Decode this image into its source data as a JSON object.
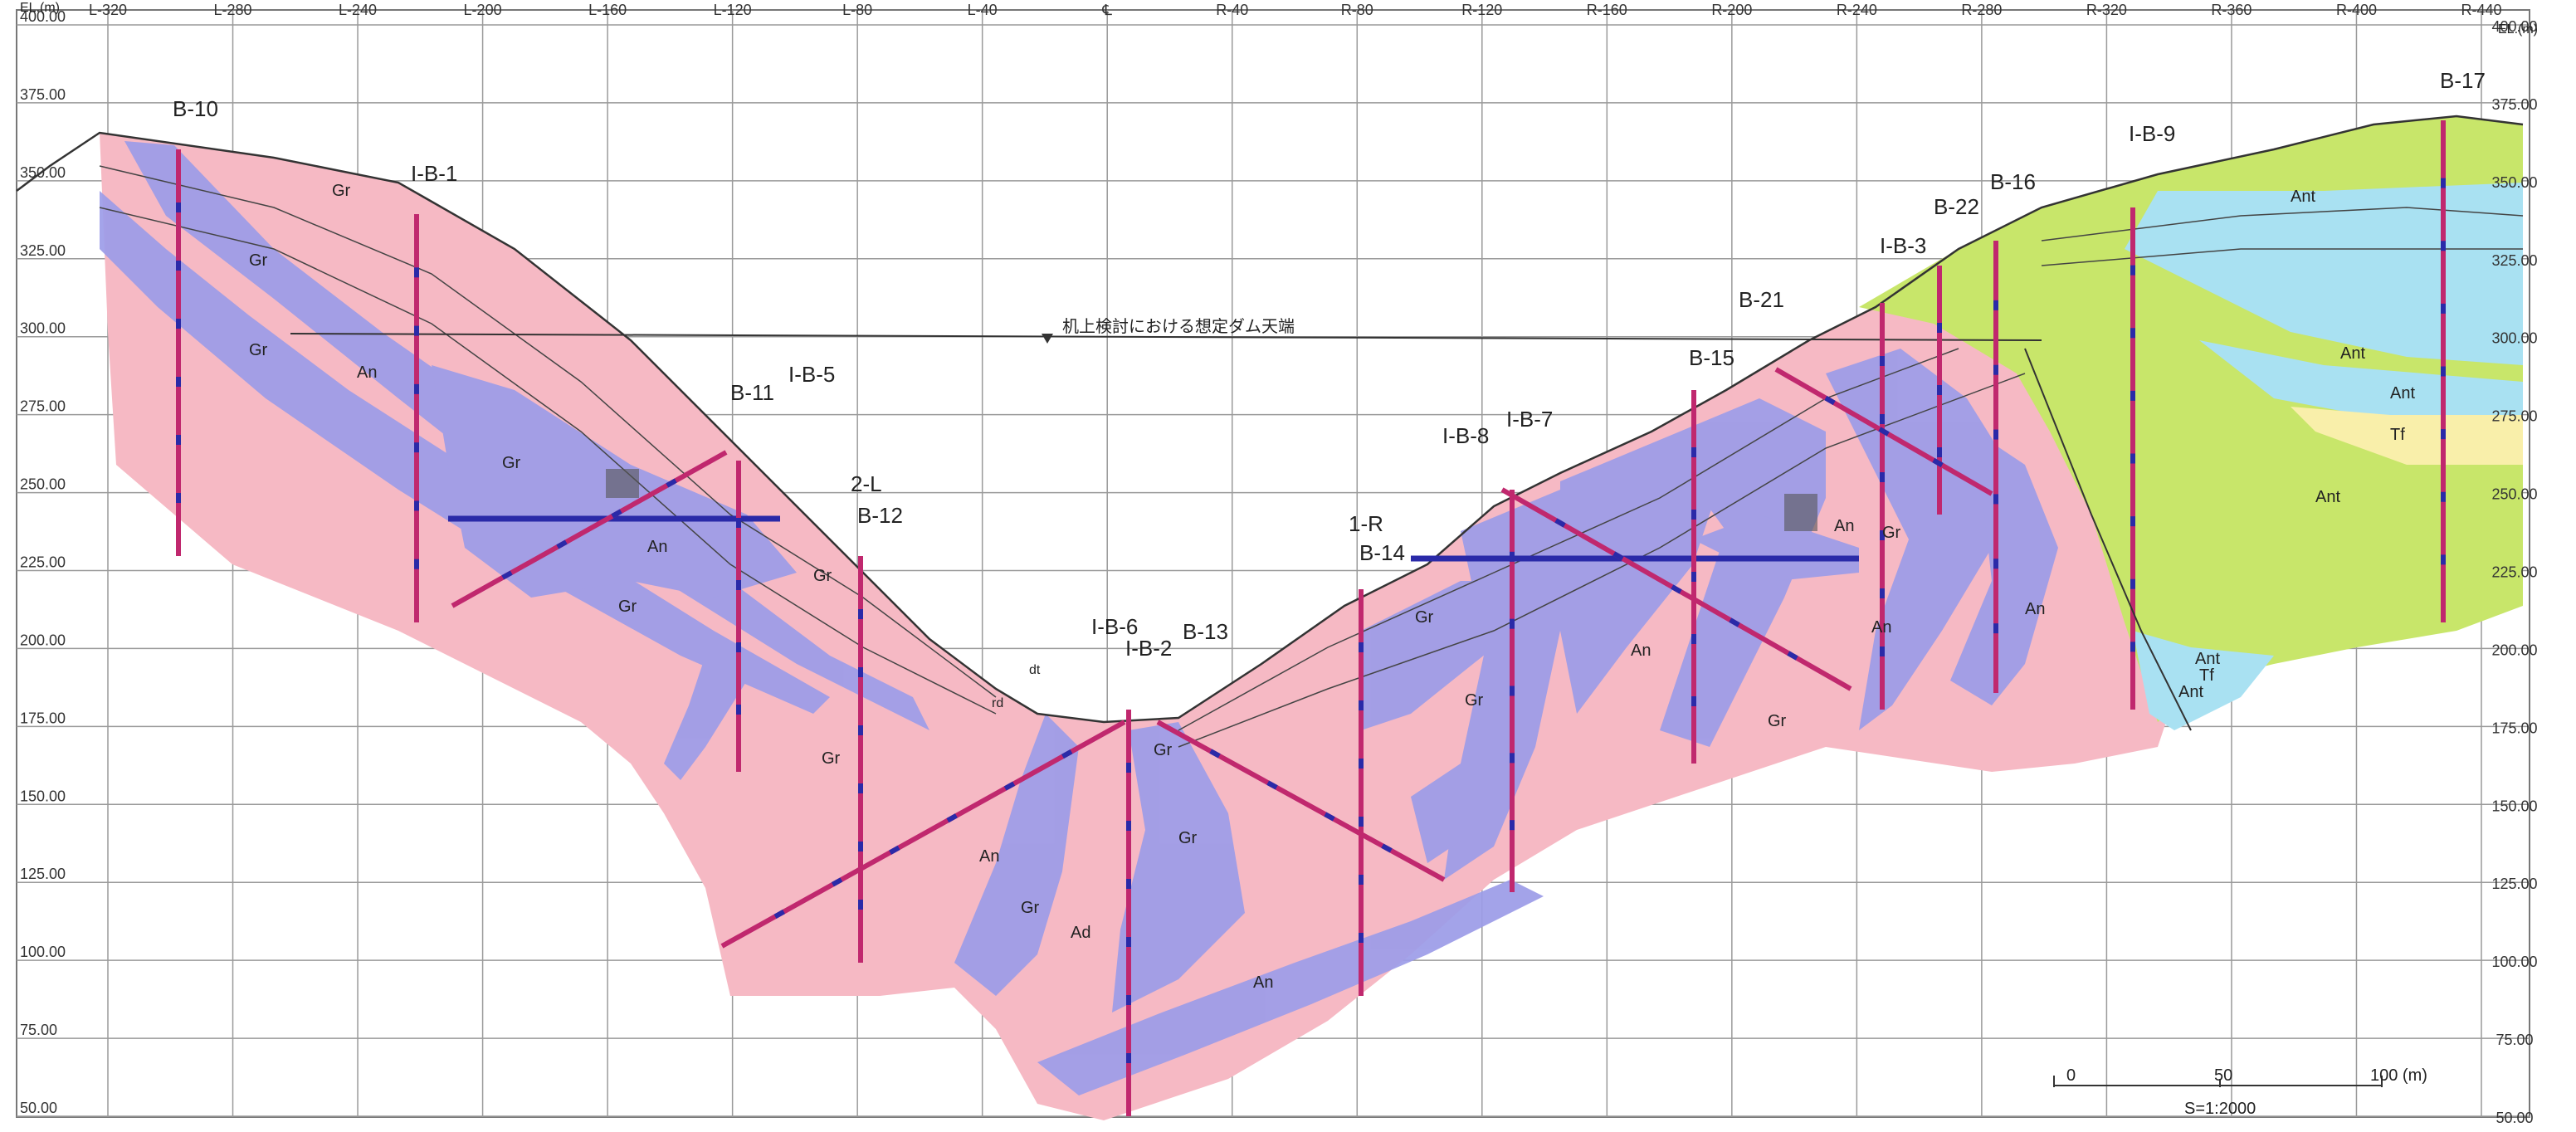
{
  "axis_unit_left": "EL.(m)",
  "axis_unit_right": "EL.(m)",
  "elevation_ticks": [
    "400.00",
    "375.00",
    "350.00",
    "325.00",
    "300.00",
    "275.00",
    "250.00",
    "225.00",
    "200.00",
    "175.00",
    "150.00",
    "125.00",
    "100.00",
    "75.00",
    "50.00"
  ],
  "station_ticks": [
    "L-320",
    "L-280",
    "L-240",
    "L-200",
    "L-160",
    "L-120",
    "L-80",
    "L-40",
    "℄",
    "R-40",
    "R-80",
    "R-120",
    "R-160",
    "R-200",
    "R-240",
    "R-280",
    "R-320",
    "R-360",
    "R-400",
    "R-440"
  ],
  "dam_crest_note": "机上検討における想定ダム天端",
  "boreholes": [
    "B-10",
    "I-B-1",
    "B-11",
    "I-B-5",
    "2-L",
    "B-12",
    "I-B-6",
    "I-B-2",
    "B-13",
    "1-R",
    "B-14",
    "I-B-8",
    "I-B-7",
    "B-15",
    "B-21",
    "I-B-3",
    "B-22",
    "B-16",
    "I-B-9",
    "B-17"
  ],
  "rock_labels": [
    "Gr",
    "An",
    "Ad",
    "dt",
    "rd",
    "Ant",
    "Tf"
  ],
  "scale_bar": {
    "ticks": [
      "0",
      "50",
      "100 (m)"
    ],
    "ratio": "S=1:2000"
  },
  "colors": {
    "granite": "#f6b9c4",
    "andesite": "#9c9ce8",
    "tuff_ant": "#c8e66a",
    "light_blue": "#a9e1f2",
    "tf": "#f9efaa",
    "borehole": "#c0286e"
  }
}
